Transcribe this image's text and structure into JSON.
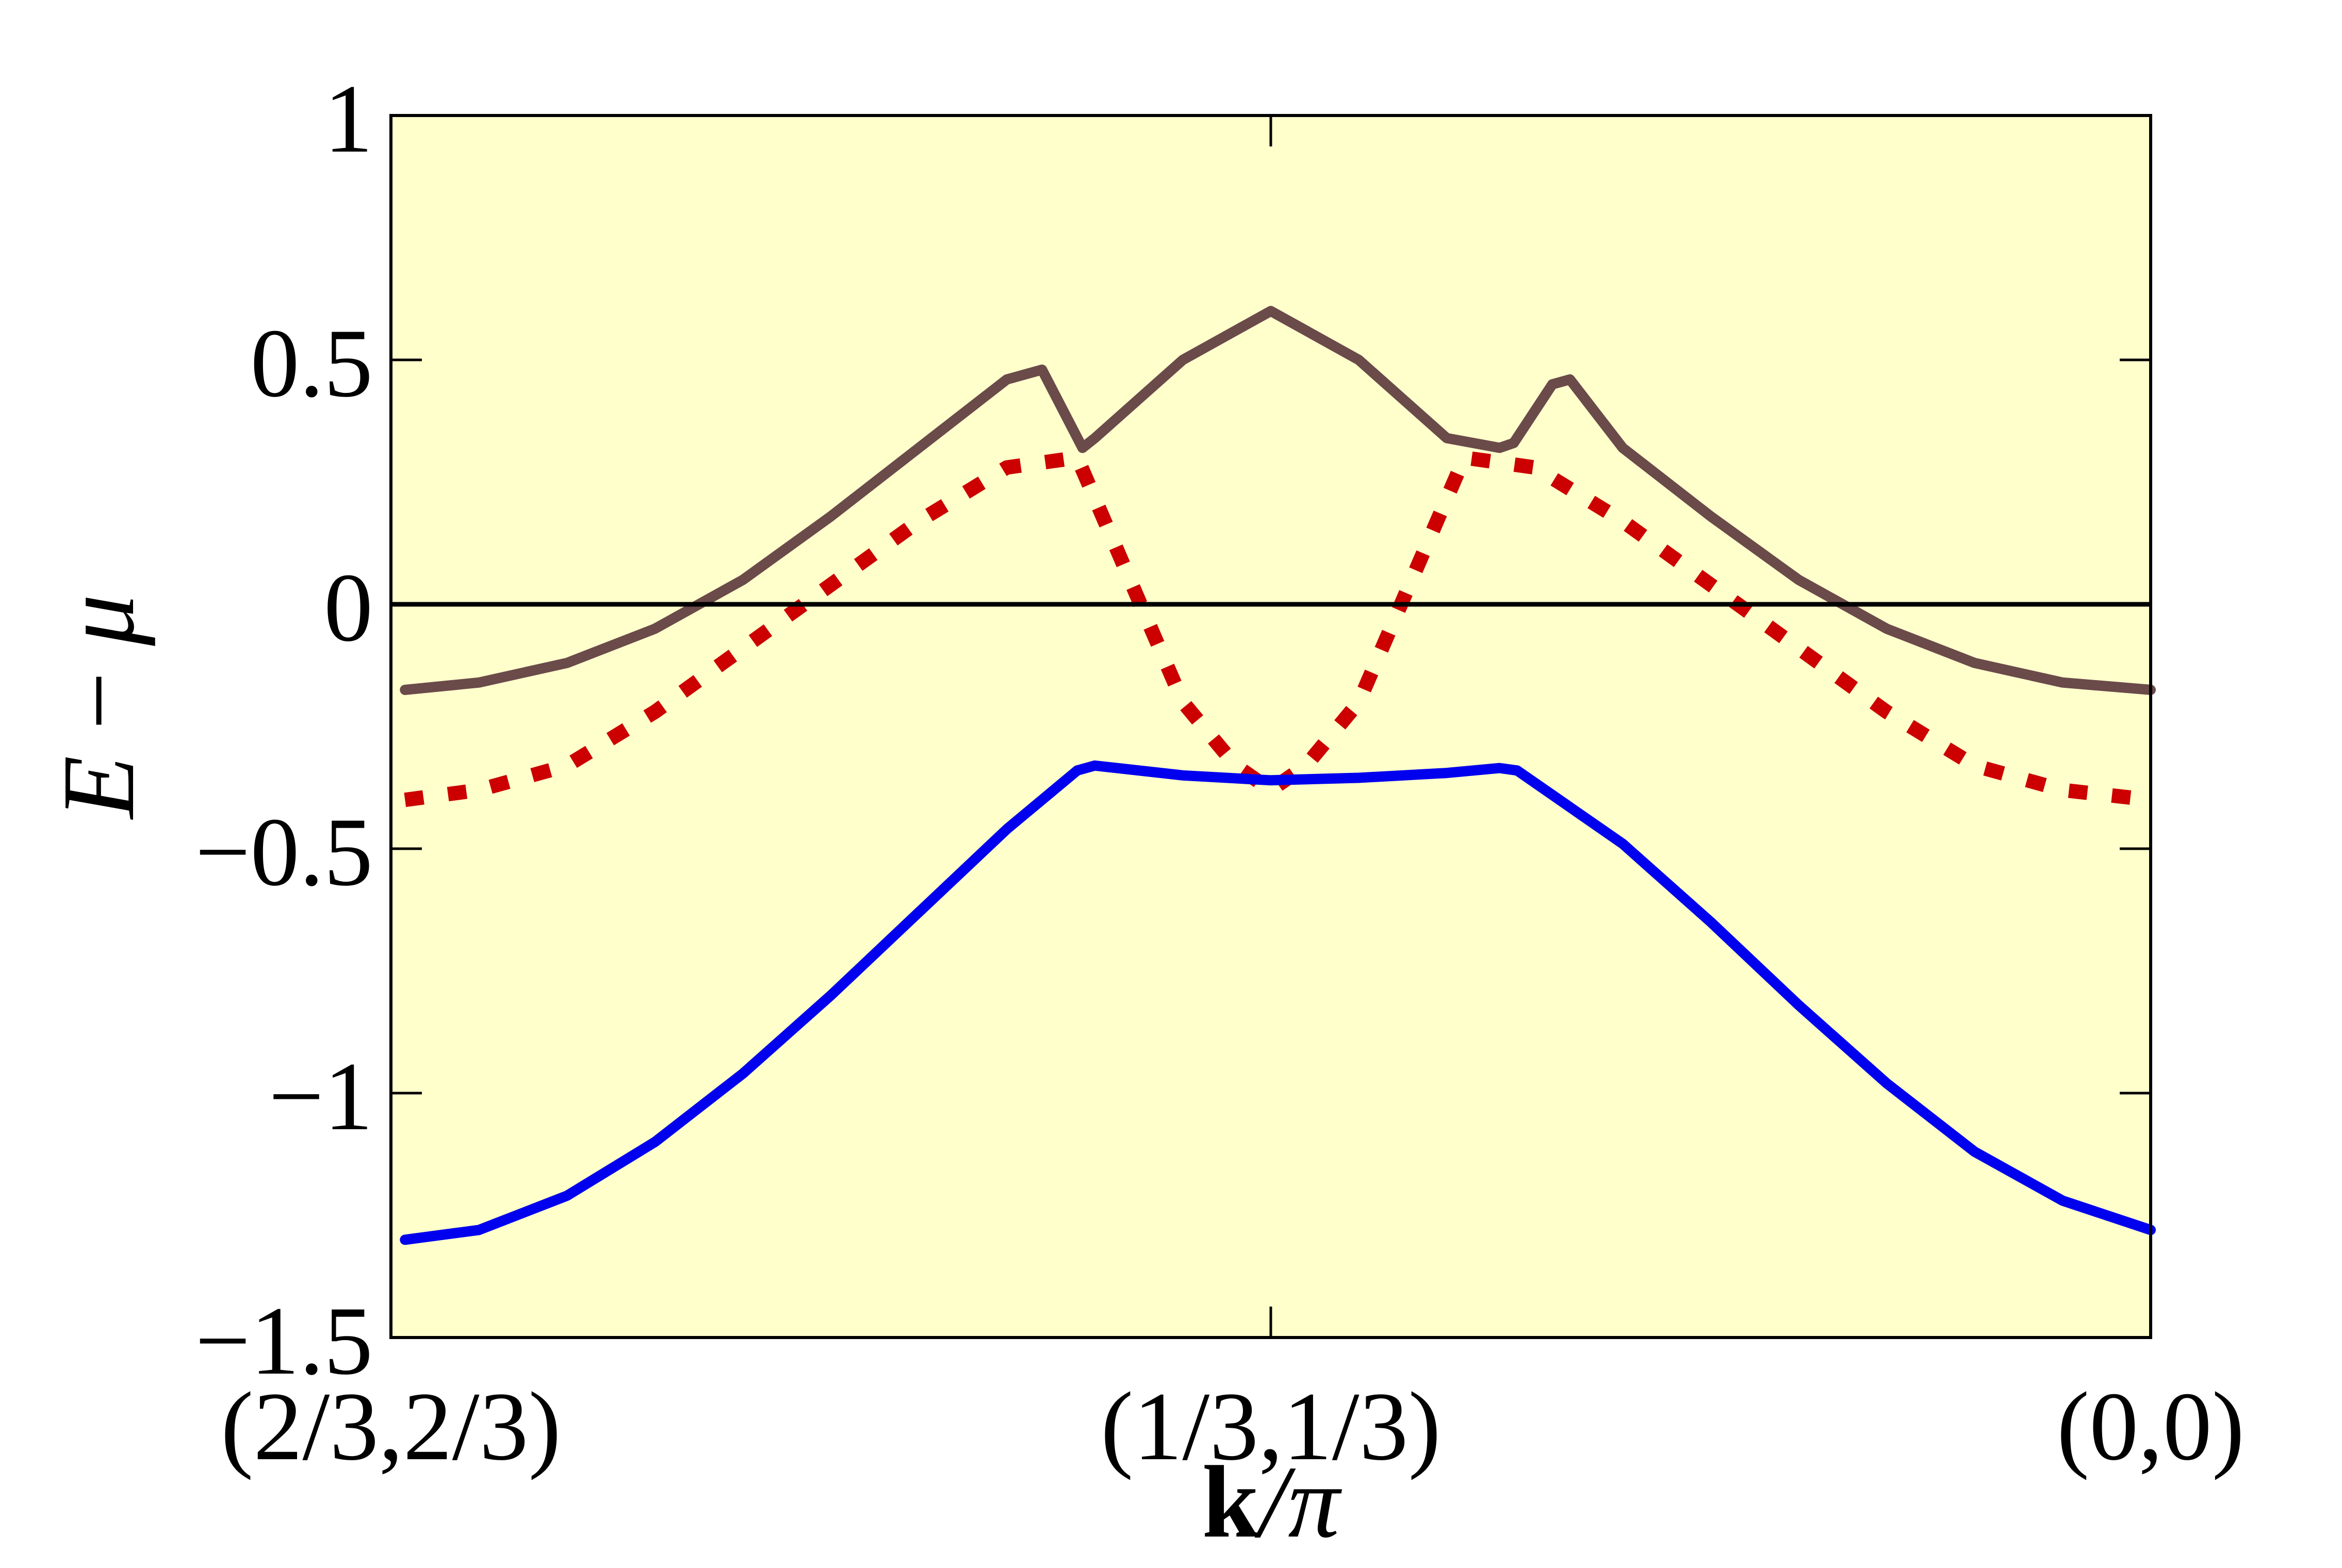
{
  "chart_data": {
    "type": "line",
    "title": "",
    "xlabel": "k/π",
    "xlabel_parts": {
      "bold": "k",
      "rest": "/π"
    },
    "ylabel": "E − μ",
    "ylabel_parts": {
      "var": "E",
      "op": "−",
      "mu": "μ"
    },
    "x_ticks": [
      {
        "value": 0,
        "label": "(2/3,2/3)"
      },
      {
        "value": 0.5,
        "label": "(1/3,1/3)"
      },
      {
        "value": 1,
        "label": "(0,0)"
      }
    ],
    "y_ticks": [
      {
        "value": 1,
        "label": "1"
      },
      {
        "value": 0.5,
        "label": "0.5"
      },
      {
        "value": 0,
        "label": "0"
      },
      {
        "value": -0.5,
        "label": "−0.5"
      },
      {
        "value": -1,
        "label": "−1"
      },
      {
        "value": -1.5,
        "label": "−1.5"
      }
    ],
    "xlim": [
      0,
      1
    ],
    "ylim": [
      -1.5,
      1
    ],
    "grid": false,
    "background_color": "#ffffcc",
    "zero_line": {
      "y": 0,
      "color": "#000000"
    },
    "series": [
      {
        "style": "solid",
        "color": "#6b4a4a",
        "x": [
          0.008,
          0.05,
          0.1,
          0.15,
          0.2,
          0.25,
          0.3,
          0.35,
          0.37,
          0.393,
          0.4,
          0.45,
          0.5,
          0.55,
          0.6,
          0.63,
          0.638,
          0.66,
          0.67,
          0.7,
          0.75,
          0.8,
          0.85,
          0.9,
          0.95,
          1.0
        ],
        "y": [
          -0.175,
          -0.16,
          -0.12,
          -0.05,
          0.05,
          0.18,
          0.32,
          0.46,
          0.48,
          0.32,
          0.34,
          0.5,
          0.6,
          0.5,
          0.34,
          0.32,
          0.33,
          0.45,
          0.46,
          0.32,
          0.18,
          0.05,
          -0.05,
          -0.12,
          -0.16,
          -0.175
        ]
      },
      {
        "style": "dotted",
        "color": "#cc0000",
        "x": [
          0.008,
          0.05,
          0.1,
          0.15,
          0.2,
          0.25,
          0.3,
          0.35,
          0.39,
          0.42,
          0.45,
          0.48,
          0.5,
          0.52,
          0.55,
          0.58,
          0.61,
          0.65,
          0.7,
          0.75,
          0.8,
          0.85,
          0.9,
          0.95,
          1.0
        ],
        "y": [
          -0.4,
          -0.38,
          -0.33,
          -0.22,
          -0.09,
          0.04,
          0.17,
          0.28,
          0.3,
          0.05,
          -0.2,
          -0.33,
          -0.38,
          -0.33,
          -0.2,
          0.05,
          0.3,
          0.28,
          0.17,
          0.04,
          -0.09,
          -0.22,
          -0.33,
          -0.38,
          -0.4
        ]
      },
      {
        "style": "solid",
        "color": "#0000ee",
        "x": [
          0.008,
          0.05,
          0.1,
          0.15,
          0.2,
          0.25,
          0.3,
          0.35,
          0.39,
          0.4,
          0.45,
          0.5,
          0.55,
          0.6,
          0.63,
          0.64,
          0.7,
          0.75,
          0.8,
          0.85,
          0.9,
          0.95,
          1.0
        ],
        "y": [
          -1.3,
          -1.28,
          -1.21,
          -1.1,
          -0.96,
          -0.8,
          -0.63,
          -0.46,
          -0.34,
          -0.33,
          -0.35,
          -0.36,
          -0.355,
          -0.345,
          -0.335,
          -0.34,
          -0.49,
          -0.65,
          -0.82,
          -0.98,
          -1.12,
          -1.22,
          -1.28
        ]
      }
    ]
  }
}
